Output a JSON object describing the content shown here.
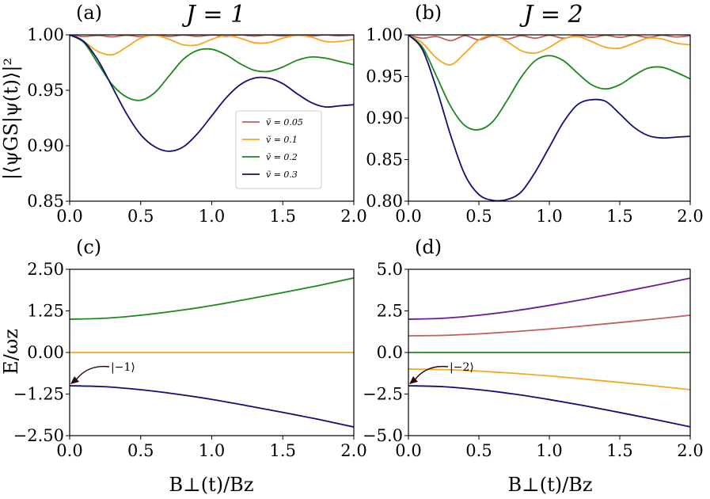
{
  "figure": {
    "xlabel": "B⊥(t)/Bz",
    "ylabel_top": "|⟨ψGS|ψ(t)⟩|²",
    "ylabel_bottom": "E/ωz"
  },
  "chart_data": [
    {
      "id": "a",
      "type": "line",
      "panel_label": "(a)",
      "title": "J = 1",
      "xlim": [
        0,
        2
      ],
      "ylim": [
        0.85,
        1.0
      ],
      "xticks": [
        "0.0",
        "0.5",
        "1.0",
        "1.5",
        "2.0"
      ],
      "xtick_values": [
        0,
        0.5,
        1.0,
        1.5,
        2.0
      ],
      "yticks": [
        "0.85",
        "0.90",
        "0.95",
        "1.00"
      ],
      "ytick_values": [
        0.85,
        0.9,
        0.95,
        1.0
      ],
      "legend": "center-right",
      "series": [
        {
          "name": "ṽ = 0.05",
          "color": "#c0605c",
          "x": [
            0,
            0.1,
            0.2,
            0.3,
            0.4,
            0.5,
            0.6,
            0.7,
            0.8,
            0.9,
            1.0,
            1.1,
            1.2,
            1.3,
            1.4,
            1.5,
            1.6,
            1.7,
            1.8,
            1.9,
            2.0
          ],
          "y": [
            1.0,
            0.9985,
            0.9995,
            0.9982,
            0.9997,
            0.9984,
            0.9998,
            0.9986,
            0.9998,
            0.9987,
            0.9998,
            0.9988,
            0.9999,
            0.9989,
            0.9999,
            0.999,
            0.9999,
            0.999,
            0.9999,
            0.9991,
            0.9999
          ]
        },
        {
          "name": "ṽ = 0.1",
          "color": "#f5a623",
          "x": [
            0,
            0.1,
            0.2,
            0.3,
            0.4,
            0.5,
            0.6,
            0.7,
            0.8,
            0.9,
            1.0,
            1.1,
            1.2,
            1.3,
            1.4,
            1.5,
            1.6,
            1.7,
            1.8,
            1.9,
            2.0
          ],
          "y": [
            1.0,
            0.994,
            0.985,
            0.982,
            0.989,
            0.997,
            0.9995,
            0.996,
            0.991,
            0.991,
            0.996,
            0.9995,
            0.997,
            0.993,
            0.993,
            0.997,
            0.9995,
            0.998,
            0.994,
            0.994,
            0.996
          ]
        },
        {
          "name": "ṽ = 0.2",
          "color": "#1a8a1a",
          "x": [
            0,
            0.1,
            0.2,
            0.3,
            0.4,
            0.5,
            0.6,
            0.7,
            0.8,
            0.9,
            1.0,
            1.1,
            1.2,
            1.3,
            1.4,
            1.5,
            1.6,
            1.7,
            1.8,
            1.9,
            2.0
          ],
          "y": [
            1.0,
            0.993,
            0.974,
            0.955,
            0.944,
            0.941,
            0.948,
            0.963,
            0.978,
            0.986,
            0.987,
            0.982,
            0.974,
            0.968,
            0.967,
            0.971,
            0.977,
            0.98,
            0.979,
            0.976,
            0.973
          ]
        },
        {
          "name": "ṽ = 0.3",
          "color": "#101075",
          "x": [
            0,
            0.1,
            0.2,
            0.3,
            0.4,
            0.5,
            0.6,
            0.7,
            0.8,
            0.9,
            1.0,
            1.1,
            1.2,
            1.3,
            1.4,
            1.5,
            1.6,
            1.7,
            1.8,
            1.9,
            2.0
          ],
          "y": [
            1.0,
            0.994,
            0.977,
            0.953,
            0.929,
            0.91,
            0.899,
            0.895,
            0.899,
            0.911,
            0.927,
            0.943,
            0.955,
            0.961,
            0.961,
            0.956,
            0.947,
            0.939,
            0.935,
            0.936,
            0.937
          ]
        }
      ]
    },
    {
      "id": "b",
      "type": "line",
      "panel_label": "(b)",
      "title": "J = 2",
      "xlim": [
        0,
        2
      ],
      "ylim": [
        0.8,
        1.0
      ],
      "xticks": [
        "0.0",
        "0.5",
        "1.0",
        "1.5",
        "2.0"
      ],
      "xtick_values": [
        0,
        0.5,
        1.0,
        1.5,
        2.0
      ],
      "yticks": [
        "0.80",
        "0.85",
        "0.90",
        "0.95",
        "1.00"
      ],
      "ytick_values": [
        0.8,
        0.85,
        0.9,
        0.95,
        1.0
      ],
      "series": [
        {
          "name": "ṽ = 0.05",
          "color": "#c0605c",
          "x": [
            0,
            0.1,
            0.2,
            0.3,
            0.4,
            0.5,
            0.6,
            0.7,
            0.8,
            0.9,
            1.0,
            1.1,
            1.2,
            1.3,
            1.4,
            1.5,
            1.6,
            1.7,
            1.8,
            1.9,
            2.0
          ],
          "y": [
            1.0,
            0.996,
            0.998,
            0.993,
            0.999,
            0.994,
            0.999,
            0.995,
            0.999,
            0.996,
            0.9995,
            0.996,
            0.9995,
            0.997,
            0.9995,
            0.997,
            0.9995,
            0.997,
            0.9995,
            0.9975,
            0.999
          ]
        },
        {
          "name": "ṽ = 0.1",
          "color": "#f5a623",
          "x": [
            0,
            0.1,
            0.2,
            0.3,
            0.4,
            0.5,
            0.6,
            0.7,
            0.8,
            0.9,
            1.0,
            1.1,
            1.2,
            1.3,
            1.4,
            1.5,
            1.6,
            1.7,
            1.8,
            1.9,
            2.0
          ],
          "y": [
            1.0,
            0.99,
            0.972,
            0.964,
            0.978,
            0.994,
            0.9995,
            0.992,
            0.981,
            0.978,
            0.985,
            0.995,
            0.998,
            0.992,
            0.985,
            0.984,
            0.99,
            0.996,
            0.995,
            0.99,
            0.988
          ]
        },
        {
          "name": "ṽ = 0.2",
          "color": "#1a8a1a",
          "x": [
            0,
            0.1,
            0.2,
            0.3,
            0.4,
            0.5,
            0.6,
            0.7,
            0.8,
            0.9,
            1.0,
            1.1,
            1.2,
            1.3,
            1.4,
            1.5,
            1.6,
            1.7,
            1.8,
            1.9,
            2.0
          ],
          "y": [
            1.0,
            0.985,
            0.95,
            0.914,
            0.891,
            0.886,
            0.896,
            0.921,
            0.949,
            0.969,
            0.975,
            0.969,
            0.954,
            0.94,
            0.935,
            0.94,
            0.951,
            0.96,
            0.961,
            0.955,
            0.947
          ]
        },
        {
          "name": "ṽ = 0.3",
          "color": "#101075",
          "x": [
            0,
            0.1,
            0.2,
            0.3,
            0.4,
            0.5,
            0.6,
            0.7,
            0.8,
            0.9,
            1.0,
            1.1,
            1.2,
            1.3,
            1.4,
            1.5,
            1.6,
            1.7,
            1.8,
            1.9,
            2.0
          ],
          "y": [
            1.0,
            0.982,
            0.935,
            0.879,
            0.832,
            0.808,
            0.801,
            0.802,
            0.811,
            0.835,
            0.865,
            0.895,
            0.916,
            0.922,
            0.92,
            0.905,
            0.889,
            0.879,
            0.876,
            0.877,
            0.878
          ]
        }
      ]
    },
    {
      "id": "c",
      "type": "line",
      "panel_label": "(c)",
      "xlim": [
        0,
        2
      ],
      "ylim": [
        -2.5,
        2.5
      ],
      "xticks": [
        "0.0",
        "0.5",
        "1.0",
        "1.5",
        "2.0"
      ],
      "xtick_values": [
        0,
        0.5,
        1.0,
        1.5,
        2.0
      ],
      "yticks": [
        "−2.50",
        "−1.25",
        "0.00",
        "1.25",
        "2.50"
      ],
      "ytick_values": [
        -2.5,
        -1.25,
        0,
        1.25,
        2.5
      ],
      "annotation": {
        "text": "|−1⟩",
        "x": 0,
        "y": -1.0
      },
      "series": [
        {
          "color": "#1a8a1a",
          "x": [
            0,
            0.25,
            0.5,
            0.75,
            1.0,
            1.25,
            1.5,
            1.75,
            2.0
          ],
          "y": [
            1.0,
            1.03,
            1.12,
            1.25,
            1.41,
            1.6,
            1.8,
            2.01,
            2.24
          ]
        },
        {
          "color": "#f5a623",
          "x": [
            0,
            2.0
          ],
          "y": [
            0,
            0
          ]
        },
        {
          "color": "#101075",
          "x": [
            0,
            0.25,
            0.5,
            0.75,
            1.0,
            1.25,
            1.5,
            1.75,
            2.0
          ],
          "y": [
            -1.0,
            -1.03,
            -1.12,
            -1.25,
            -1.41,
            -1.6,
            -1.8,
            -2.01,
            -2.24
          ]
        }
      ]
    },
    {
      "id": "d",
      "type": "line",
      "panel_label": "(d)",
      "xlim": [
        0,
        2
      ],
      "ylim": [
        -5,
        5
      ],
      "xticks": [
        "0.0",
        "0.5",
        "1.0",
        "1.5",
        "2.0"
      ],
      "xtick_values": [
        0,
        0.5,
        1.0,
        1.5,
        2.0
      ],
      "yticks": [
        "−5.0",
        "−2.5",
        "0.0",
        "2.5",
        "5.0"
      ],
      "ytick_values": [
        -5,
        -2.5,
        0,
        2.5,
        5
      ],
      "annotation": {
        "text": "|−2⟩",
        "x": 0,
        "y": -2.0
      },
      "series": [
        {
          "color": "#6a1b9a",
          "x": [
            0,
            0.25,
            0.5,
            0.75,
            1.0,
            1.25,
            1.5,
            1.75,
            2.0
          ],
          "y": [
            2.0,
            2.06,
            2.24,
            2.5,
            2.83,
            3.2,
            3.61,
            4.03,
            4.47
          ]
        },
        {
          "color": "#c0605c",
          "x": [
            0,
            0.25,
            0.5,
            0.75,
            1.0,
            1.25,
            1.5,
            1.75,
            2.0
          ],
          "y": [
            1.0,
            1.03,
            1.12,
            1.25,
            1.41,
            1.6,
            1.8,
            2.01,
            2.24
          ]
        },
        {
          "color": "#1a8a1a",
          "x": [
            0,
            2.0
          ],
          "y": [
            0,
            0
          ]
        },
        {
          "color": "#f5a623",
          "x": [
            0,
            0.25,
            0.5,
            0.75,
            1.0,
            1.25,
            1.5,
            1.75,
            2.0
          ],
          "y": [
            -1.0,
            -1.03,
            -1.12,
            -1.25,
            -1.41,
            -1.6,
            -1.8,
            -2.01,
            -2.24
          ]
        },
        {
          "color": "#101075",
          "x": [
            0,
            0.25,
            0.5,
            0.75,
            1.0,
            1.25,
            1.5,
            1.75,
            2.0
          ],
          "y": [
            -2.0,
            -2.06,
            -2.24,
            -2.5,
            -2.83,
            -3.2,
            -3.61,
            -4.03,
            -4.47
          ]
        }
      ]
    }
  ]
}
